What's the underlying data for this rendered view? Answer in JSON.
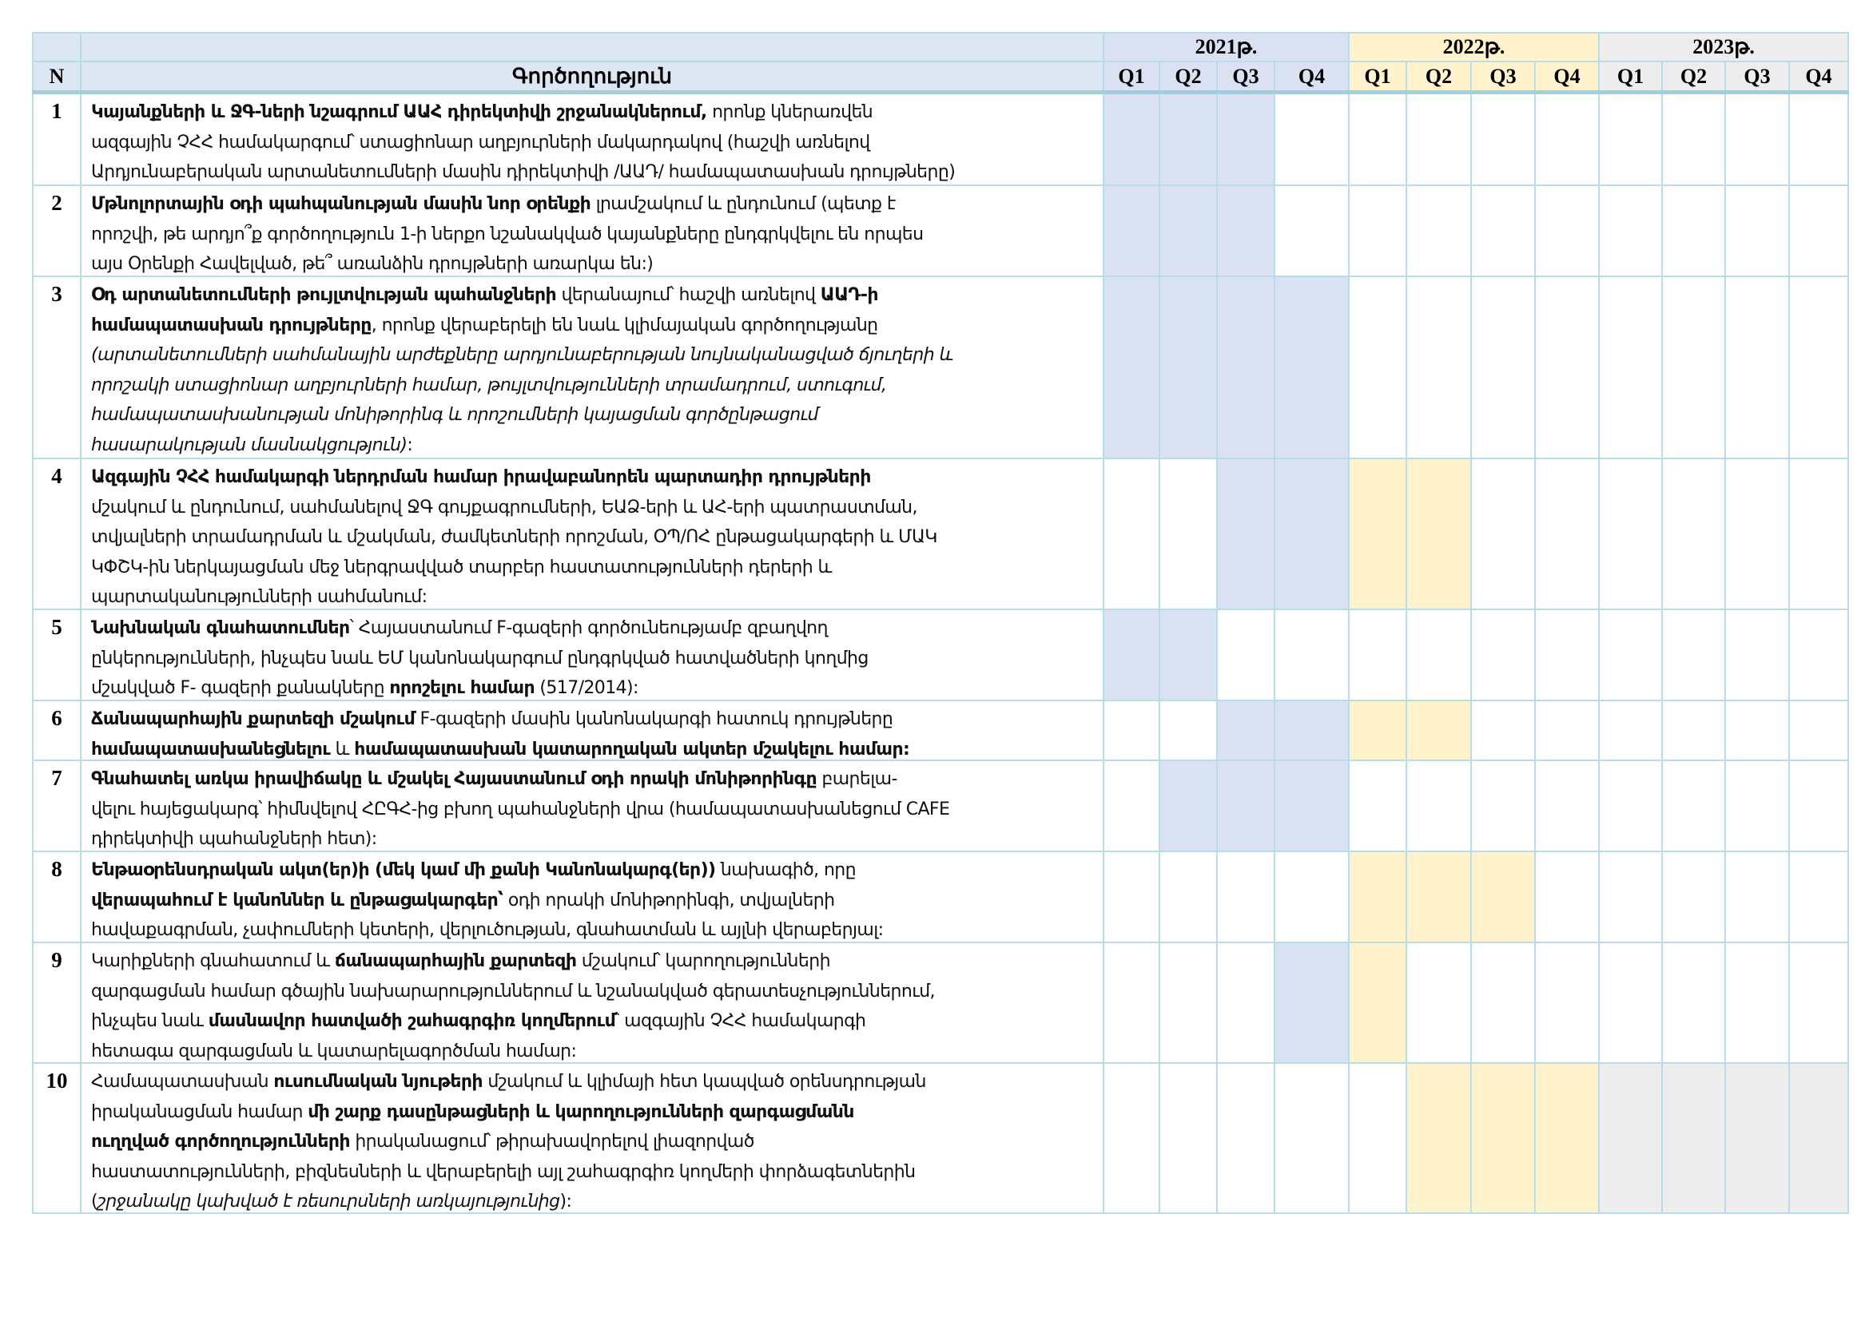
{
  "header": {
    "n_label": "N",
    "activity_label": "Գործողություն",
    "years": [
      {
        "label": "2021թ.",
        "color": "#d9e1f2"
      },
      {
        "label": "2022թ.",
        "color": "#fff2cc"
      },
      {
        "label": "2023թ.",
        "color": "#ededed"
      }
    ],
    "quarters": [
      "Q1",
      "Q2",
      "Q3",
      "Q4"
    ]
  },
  "colors": {
    "2021": "#d9e1f2",
    "2022": "#fff2cc",
    "2023": "#ededed",
    "border": "#b7dde6"
  },
  "rows": [
    {
      "n": "1",
      "segments": [
        {
          "t": "Կայանքների և ՋԳ-ների նշագրում ԱԱՀ դիրեկտիվի շրջանակներում,",
          "s": "b"
        },
        {
          "t": " որոնք կներառվեն\nազգային ՉՀՀ համակարգում՝ ստացիոնար աղբյուրների մակարդակով (հաշվի առնելով\nԱրդյունաբերական արտանետումների մասին դիրեկտիվի /ԱԱԴ/ համապատասխան դրույթները)",
          "s": ""
        }
      ],
      "schedule": [
        1,
        1,
        1,
        0,
        0,
        0,
        0,
        0,
        0,
        0,
        0,
        0
      ]
    },
    {
      "n": "2",
      "segments": [
        {
          "t": "Մթնոլորտային օդի պահպանության մասին նոր օրենքի",
          "s": "b"
        },
        {
          "t": " լրամշակում և ընդունում (պետք է\nորոշվի, թե արդյո՞ք գործողություն 1-ի ներքո նշանակված կայանքները ընդգրկվելու են որպես\nայս Օրենքի Հավելված, թե՞ առանձին դրույթների առարկա են:)",
          "s": ""
        }
      ],
      "schedule": [
        1,
        1,
        1,
        0,
        0,
        0,
        0,
        0,
        0,
        0,
        0,
        0
      ]
    },
    {
      "n": "3",
      "segments": [
        {
          "t": "Օդ արտանետումների թույլտվության պահանջների",
          "s": "b"
        },
        {
          "t": " վերանայում՝ հաշվի առնելով ",
          "s": ""
        },
        {
          "t": "ԱԱԴ-ի\nհամապատասխան դրույթները",
          "s": "b"
        },
        {
          "t": ", որոնք վերաբերելի են նաև կլիմայական գործողությանը\n",
          "s": ""
        },
        {
          "t": "(արտանետումների սահմանային արժեքները արդյունաբերության նույնականացված ճյուղերի և\nորոշակի ստացիոնար աղբյուրների համար, թույլտվությունների տրամադրում, ստուգում,\nհամապատասխանության մոնիթորինգ և որոշումների կայացման գործընթացում\nհասարակության մասնակցություն)",
          "s": "i"
        },
        {
          "t": ":",
          "s": ""
        }
      ],
      "schedule": [
        1,
        1,
        1,
        1,
        0,
        0,
        0,
        0,
        0,
        0,
        0,
        0
      ]
    },
    {
      "n": "4",
      "segments": [
        {
          "t": "Ազգային ՉՀՀ համակարգի ներդրման համար իրավաբանորեն պարտադիր դրույթների",
          "s": "b"
        },
        {
          "t": "\nմշակում և ընդունում, սահմանելով ՋԳ գույքագրումների, ԵԱՁ-երի և ԱՀ-երի պատրաստման,\nտվյալների տրամադրման և մշակման, ժամկետների որոշման, ՕՊ/ՈՀ ընթացակարգերի և ՄԱԿ\nԿՓՇԿ-ին ներկայացման մեջ ներգրավված տարբեր հաստատությունների դերերի և\nպարտականությունների սահմանում:",
          "s": ""
        }
      ],
      "schedule": [
        0,
        0,
        1,
        1,
        1,
        1,
        0,
        0,
        0,
        0,
        0,
        0
      ]
    },
    {
      "n": "5",
      "segments": [
        {
          "t": "Նախնական գնահատումներ",
          "s": "b"
        },
        {
          "t": "՝ Հայաստանում F-գազերի գործունեությամբ զբաղվող\nընկերությունների, ինչպես նաև ԵՄ կանոնակարգում ընդգրկված հատվածների կողմից\nմշակված F- գազերի քանակները ",
          "s": ""
        },
        {
          "t": "որոշելու համար",
          "s": "b"
        },
        {
          "t": " (517/2014):",
          "s": ""
        }
      ],
      "schedule": [
        1,
        1,
        0,
        0,
        0,
        0,
        0,
        0,
        0,
        0,
        0,
        0
      ]
    },
    {
      "n": "6",
      "segments": [
        {
          "t": "Ճանապարհային քարտեզի մշակում",
          "s": "b"
        },
        {
          "t": " F-գազերի մասին կանոնակարգի հատուկ դրույթները\n",
          "s": ""
        },
        {
          "t": "համապատասխանեցնելու",
          "s": "b"
        },
        {
          "t": " և ",
          "s": ""
        },
        {
          "t": "համապատասխան կատարողական ակտեր մշակելու համար:",
          "s": "b"
        }
      ],
      "schedule": [
        0,
        0,
        1,
        1,
        1,
        1,
        0,
        0,
        0,
        0,
        0,
        0
      ]
    },
    {
      "n": "7",
      "segments": [
        {
          "t": "Գնահատել առկա իրավիճակը և մշակել Հայաստանում օդի որակի մոնիթորինգը",
          "s": "b"
        },
        {
          "t": " բարելա-\nվելու հայեցակարգ՝ հիմնվելով ՀԸԳՀ-ից բխող պահանջների վրա (համապատասխանեցում CAFE\nդիրեկտիվի պահանջների հետ):",
          "s": ""
        }
      ],
      "schedule": [
        0,
        1,
        1,
        1,
        0,
        0,
        0,
        0,
        0,
        0,
        0,
        0
      ]
    },
    {
      "n": "8",
      "segments": [
        {
          "t": "Ենթաօրենսդրական ակտ(եր)ի (մեկ կամ մի քանի Կանոնակարգ(եր))",
          "s": "b"
        },
        {
          "t": " նախագիծ, որը\n",
          "s": ""
        },
        {
          "t": "վերապահում է կանոններ և ընթացակարգեր՝",
          "s": "b"
        },
        {
          "t": " օդի որակի մոնիթորինգի, տվյալների\nհավաքագրման, չափումների կետերի, վերլուծության, գնահատման և այլնի վերաբերյալ:",
          "s": ""
        }
      ],
      "schedule": [
        0,
        0,
        0,
        0,
        1,
        1,
        1,
        0,
        0,
        0,
        0,
        0
      ]
    },
    {
      "n": "9",
      "segments": [
        {
          "t": "Կարիքների գնահատում և ",
          "s": ""
        },
        {
          "t": "ճանապարհային քարտեզի",
          "s": "b"
        },
        {
          "t": " մշակում՝ կարողությունների\nզարգացման համար գծային նախարարություններում և նշանակված գերատեսչություններում,\nինչպես նաև ",
          "s": ""
        },
        {
          "t": "մասնավոր հատվածի շահագրգիռ կողմերում",
          "s": "b"
        },
        {
          "t": "՝ ազգային ՉՀՀ համակարգի\nհետագա զարգացման և կատարելագործման համար:",
          "s": ""
        }
      ],
      "schedule": [
        0,
        0,
        0,
        1,
        1,
        0,
        0,
        0,
        0,
        0,
        0,
        0
      ]
    },
    {
      "n": "10",
      "segments": [
        {
          "t": "Համապատասխան ",
          "s": ""
        },
        {
          "t": "ուսումնական նյութերի",
          "s": "b"
        },
        {
          "t": " մշակում և կլիմայի հետ կապված օրենսդրության\nիրականացման համար ",
          "s": ""
        },
        {
          "t": "մի շարք դասընթացների և կարողությունների զարգացմանն\nուղղված գործողությունների",
          "s": "b"
        },
        {
          "t": " իրականացում՝ թիրախավորելով լիազորված\nհաստատությունների, բիզնեսների և վերաբերելի այլ շահագրգիռ կողմերի փորձագետներին\n(",
          "s": ""
        },
        {
          "t": "շրջանակը կախված է ռեսուրսների առկայությունից",
          "s": "i"
        },
        {
          "t": "):",
          "s": ""
        }
      ],
      "schedule": [
        0,
        0,
        0,
        0,
        0,
        1,
        1,
        1,
        1,
        1,
        1,
        1
      ]
    }
  ]
}
